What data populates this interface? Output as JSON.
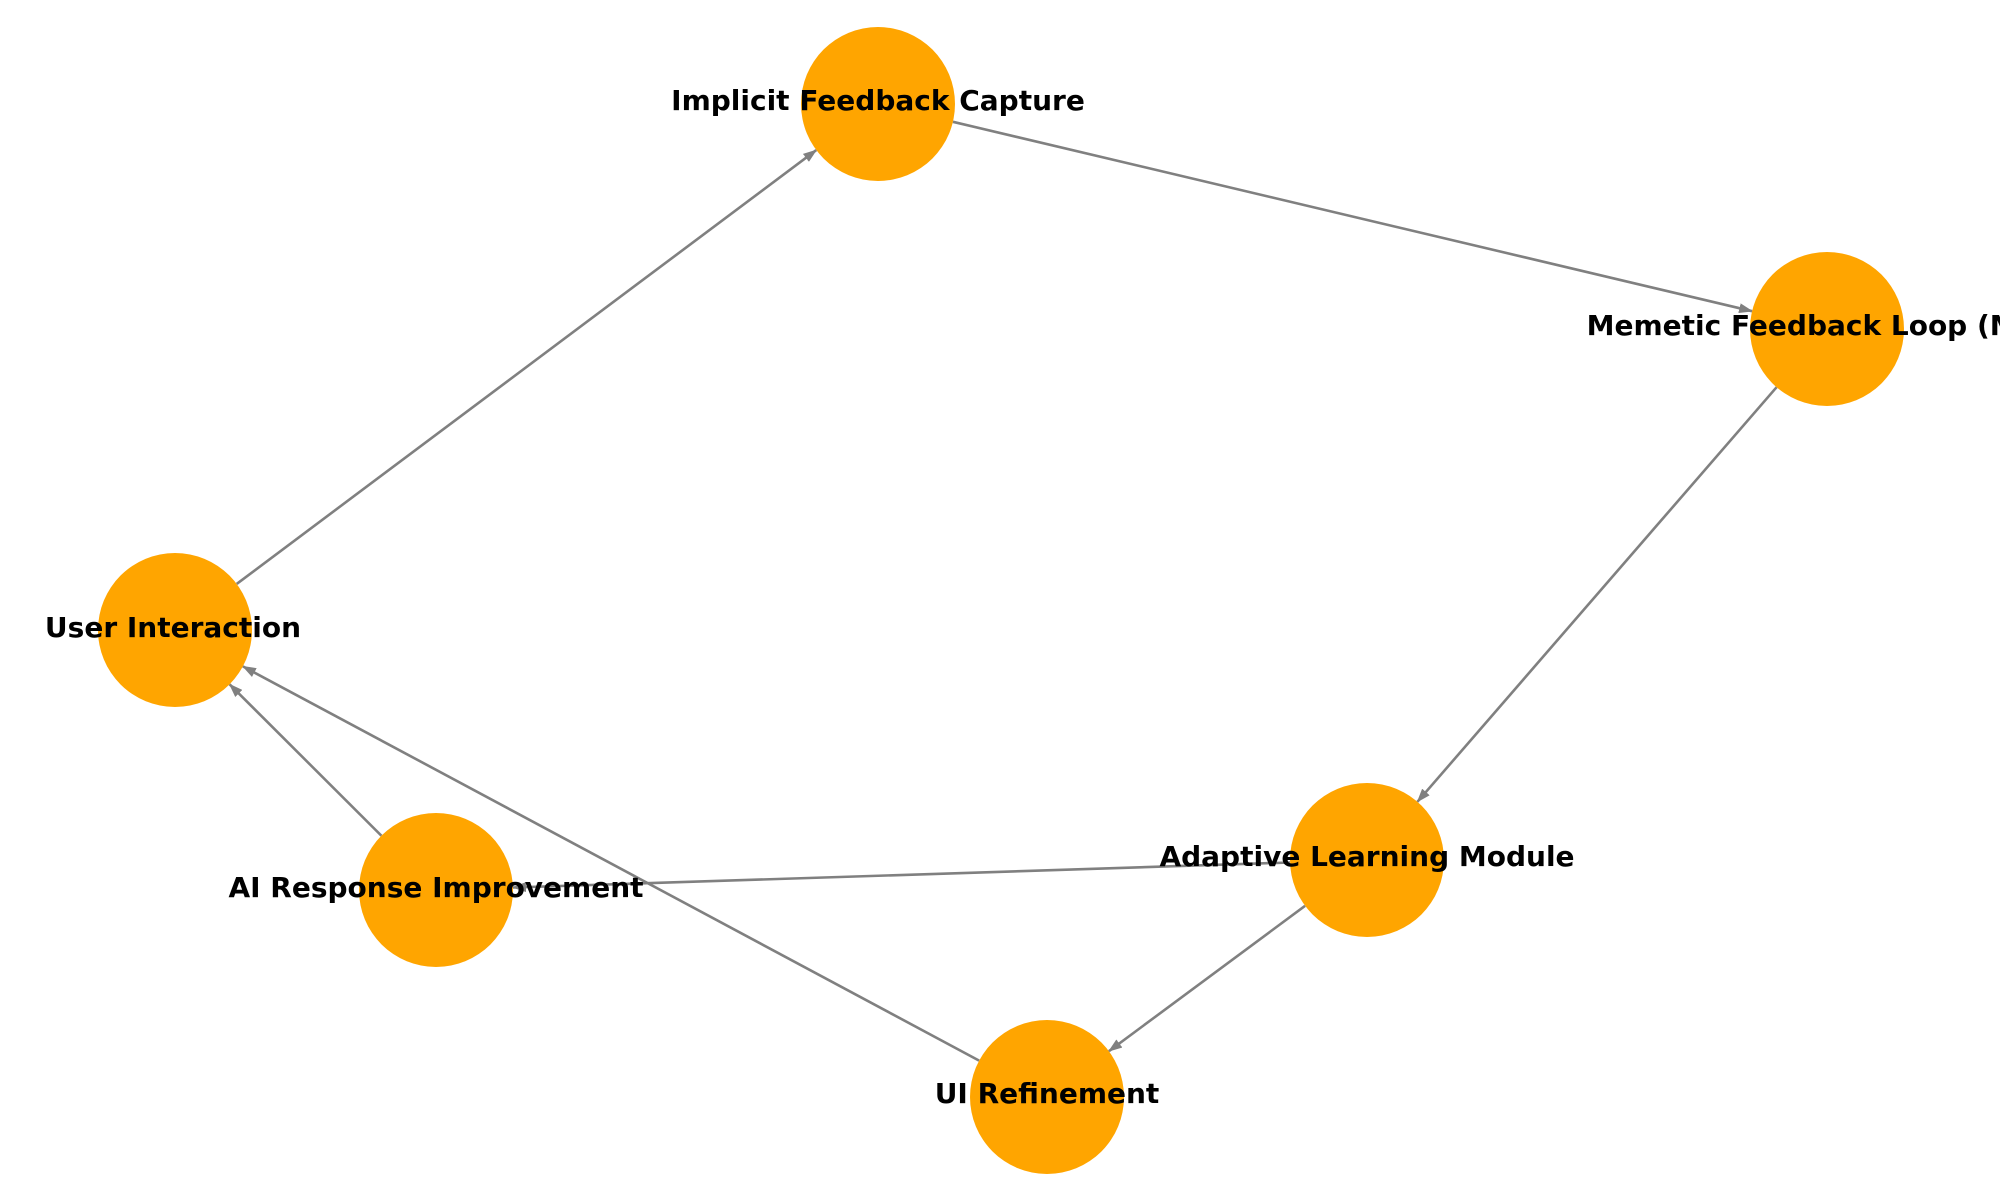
{
  "diagram": {
    "type": "directed-graph",
    "colors": {
      "node_fill": "#FFA500",
      "edge": "#808080",
      "label": "#000000",
      "background": "#FFFFFF"
    },
    "nodes": [
      {
        "id": "user",
        "label": "User Interaction"
      },
      {
        "id": "implicit",
        "label": "Implicit Feedback Capture"
      },
      {
        "id": "memetic",
        "label": "Memetic Feedback Loop (MFL)"
      },
      {
        "id": "adaptive",
        "label": "Adaptive Learning Module"
      },
      {
        "id": "ui",
        "label": "UI Refinement"
      },
      {
        "id": "ai",
        "label": "AI Response Improvement"
      }
    ],
    "edges": [
      {
        "from": "user",
        "to": "implicit"
      },
      {
        "from": "implicit",
        "to": "memetic"
      },
      {
        "from": "memetic",
        "to": "adaptive"
      },
      {
        "from": "adaptive",
        "to": "ui"
      },
      {
        "from": "adaptive",
        "to": "ai"
      },
      {
        "from": "ui",
        "to": "user"
      },
      {
        "from": "ai",
        "to": "user"
      }
    ]
  }
}
